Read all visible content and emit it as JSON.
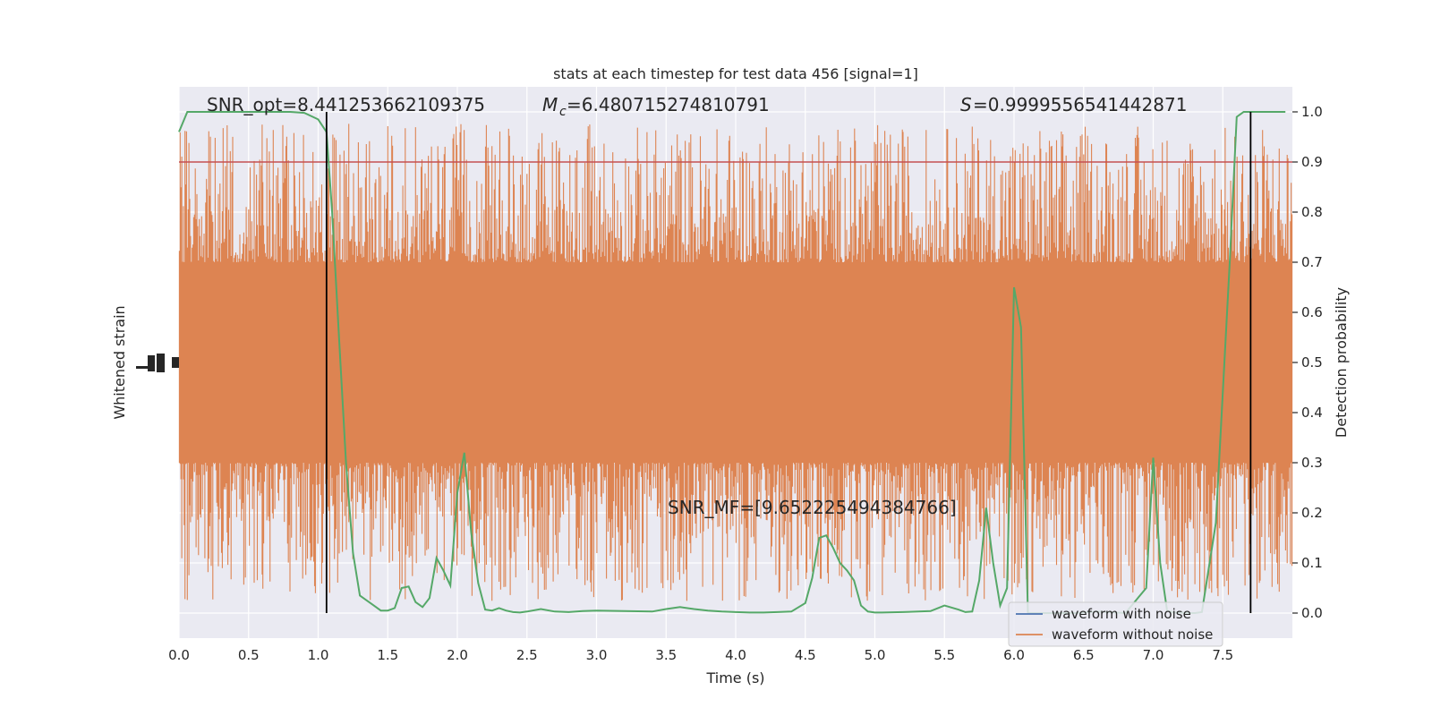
{
  "chart_data": {
    "type": "line",
    "title": "stats at each timestep for test data 456 [signal=1]",
    "xlabel": "Time (s)",
    "ylabel_left": "Whitened strain",
    "ylabel_right": "Detection probability",
    "xlim": [
      0,
      8
    ],
    "ylim_right": [
      -0.05,
      1.05
    ],
    "x_ticks": [
      "0.0",
      "0.5",
      "1.0",
      "1.5",
      "2.0",
      "2.5",
      "3.0",
      "3.5",
      "4.0",
      "4.5",
      "5.0",
      "5.5",
      "6.0",
      "6.5",
      "7.0",
      "7.5"
    ],
    "y_ticks_right": [
      "0.0",
      "0.1",
      "0.2",
      "0.3",
      "0.4",
      "0.5",
      "0.6",
      "0.7",
      "0.8",
      "0.9",
      "1.0"
    ],
    "grid": true,
    "legend_position": "lower-right",
    "annotations": {
      "snr_opt": "SNR_opt=8.441253662109375",
      "mc": "=6.480715274810791",
      "s": "=0.9999556541442871",
      "snr_mf": "SNR_MF=[9.652225494384766]"
    },
    "threshold": 0.9,
    "vlines": [
      1.06,
      7.7
    ],
    "series": [
      {
        "name": "waveform with noise",
        "color": "#4c72b0",
        "note": "hidden behind orange trace"
      },
      {
        "name": "waveform without noise",
        "color": "#dd8452",
        "band_low": 0.3,
        "band_high": 0.7,
        "spike_max": 1.0,
        "spike_min": 0.0
      },
      {
        "name": "Detection probability",
        "color": "#55a868",
        "x": [
          0,
          0.06,
          0.2,
          0.4,
          0.6,
          0.8,
          0.9,
          1.0,
          1.06,
          1.1,
          1.15,
          1.2,
          1.25,
          1.3,
          1.4,
          1.45,
          1.5,
          1.55,
          1.6,
          1.65,
          1.7,
          1.75,
          1.8,
          1.85,
          1.9,
          1.95,
          2.0,
          2.05,
          2.1,
          2.15,
          2.2,
          2.25,
          2.3,
          2.35,
          2.4,
          2.45,
          2.5,
          2.6,
          2.7,
          2.8,
          2.9,
          3.0,
          3.2,
          3.4,
          3.5,
          3.6,
          3.7,
          3.8,
          3.9,
          4.0,
          4.1,
          4.2,
          4.3,
          4.4,
          4.5,
          4.55,
          4.6,
          4.65,
          4.7,
          4.75,
          4.8,
          4.85,
          4.9,
          4.95,
          5.0,
          5.05,
          5.2,
          5.4,
          5.5,
          5.6,
          5.65,
          5.7,
          5.75,
          5.8,
          5.85,
          5.9,
          5.95,
          6.0,
          6.05,
          6.1,
          6.15,
          6.2,
          6.25,
          6.3,
          6.35,
          6.4,
          6.45,
          6.5,
          6.6,
          6.8,
          6.95,
          7.0,
          7.05,
          7.1,
          7.15,
          7.2,
          7.25,
          7.3,
          7.35,
          7.45,
          7.55,
          7.6,
          7.65,
          7.7,
          7.75,
          7.8,
          7.85,
          7.95
        ],
        "y": [
          0.96,
          1.0,
          1.0,
          1.0,
          1.0,
          1.0,
          0.998,
          0.985,
          0.96,
          0.8,
          0.55,
          0.3,
          0.12,
          0.035,
          0.015,
          0.005,
          0.005,
          0.01,
          0.05,
          0.053,
          0.022,
          0.012,
          0.03,
          0.11,
          0.085,
          0.055,
          0.24,
          0.32,
          0.16,
          0.06,
          0.007,
          0.005,
          0.01,
          0.005,
          0.002,
          0.001,
          0.003,
          0.008,
          0.003,
          0.002,
          0.004,
          0.005,
          0.004,
          0.003,
          0.008,
          0.012,
          0.008,
          0.005,
          0.003,
          0.002,
          0.001,
          0.001,
          0.002,
          0.003,
          0.02,
          0.07,
          0.15,
          0.155,
          0.13,
          0.1,
          0.085,
          0.065,
          0.015,
          0.003,
          0.001,
          0.001,
          0.002,
          0.004,
          0.015,
          0.007,
          0.002,
          0.003,
          0.065,
          0.21,
          0.1,
          0.015,
          0.05,
          0.65,
          0.57,
          0.0,
          0.0,
          0.0,
          0.0,
          0.0,
          0.0,
          0.0,
          0.0,
          0.001,
          0.003,
          0.0,
          0.05,
          0.31,
          0.1,
          0.005,
          0.001,
          0.001,
          0.0,
          0.0,
          0.002,
          0.18,
          0.7,
          0.99,
          1.0,
          1.0,
          1.0,
          1.0,
          1.0,
          1.0
        ]
      }
    ]
  }
}
